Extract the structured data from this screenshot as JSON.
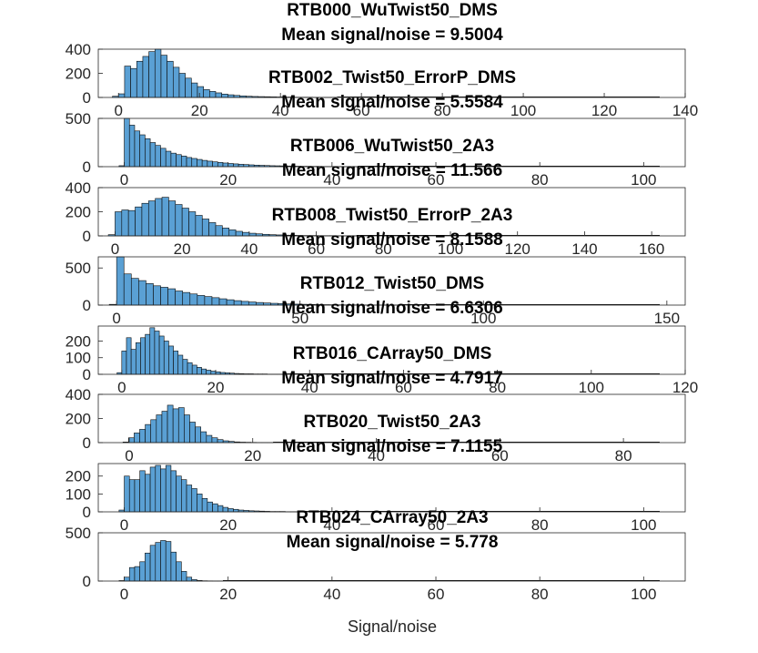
{
  "figure": {
    "xlabel": "Signal/noise"
  },
  "chart_data": [
    {
      "type": "bar",
      "title": "RTB000_WuTwist50_DMS",
      "subtitle": "Mean signal/noise = 9.5004",
      "xlim": [
        -5,
        140
      ],
      "xticks": [
        0,
        20,
        40,
        60,
        80,
        100,
        120,
        140
      ],
      "ylim": [
        0,
        400
      ],
      "yticks": [
        0,
        200,
        400
      ],
      "bin_start": -1.5,
      "bin_width": 1.5,
      "values": [
        10,
        30,
        260,
        240,
        300,
        340,
        380,
        400,
        350,
        300,
        250,
        200,
        160,
        120,
        90,
        65,
        50,
        38,
        28,
        22,
        17,
        13,
        10,
        8,
        7,
        6,
        5,
        4,
        3,
        3,
        2,
        2,
        2,
        1,
        1,
        1,
        1
      ]
    },
    {
      "type": "bar",
      "title": "RTB002_Twist50_ErrorP_DMS",
      "subtitle": "Mean signal/noise = 5.5584",
      "xlim": [
        -5,
        108
      ],
      "xticks": [
        0,
        20,
        40,
        60,
        80,
        100
      ],
      "ylim": [
        0,
        500
      ],
      "yticks": [
        0,
        500
      ],
      "bin_start": -1.0,
      "bin_width": 1.0,
      "values": [
        10,
        510,
        430,
        370,
        330,
        290,
        250,
        220,
        190,
        160,
        140,
        125,
        110,
        95,
        85,
        75,
        65,
        57,
        50,
        44,
        38,
        33,
        29,
        25,
        22,
        19,
        16,
        14,
        12,
        10,
        9,
        8,
        7,
        6,
        5,
        4,
        4,
        3,
        3,
        2,
        2,
        2,
        2,
        1,
        1,
        1
      ]
    },
    {
      "type": "bar",
      "title": "RTB006_WuTwist50_2A3",
      "subtitle": "Mean signal/noise = 11.566",
      "xlim": [
        -5,
        170
      ],
      "xticks": [
        0,
        20,
        40,
        60,
        80,
        100,
        120,
        140,
        160
      ],
      "ylim": [
        0,
        400
      ],
      "yticks": [
        0,
        200,
        400
      ],
      "bin_start": -2.0,
      "bin_width": 2.0,
      "values": [
        10,
        200,
        215,
        210,
        240,
        270,
        290,
        310,
        320,
        290,
        260,
        230,
        200,
        170,
        140,
        110,
        85,
        65,
        50,
        38,
        29,
        22,
        17,
        13,
        10,
        8,
        6,
        5,
        4,
        3,
        3,
        2,
        2,
        2,
        1,
        1,
        1
      ]
    },
    {
      "type": "bar",
      "title": "RTB008_Twist50_ErrorP_2A3",
      "subtitle": "Mean signal/noise = 8.1588",
      "xlim": [
        -5,
        155
      ],
      "xticks": [
        0,
        50,
        100,
        150
      ],
      "ylim": [
        0,
        650
      ],
      "yticks": [
        0,
        500
      ],
      "bin_start": -2.0,
      "bin_width": 2.0,
      "values": [
        10,
        650,
        420,
        360,
        330,
        290,
        260,
        240,
        220,
        190,
        170,
        150,
        130,
        115,
        100,
        85,
        72,
        60,
        50,
        42,
        35,
        29,
        24,
        20,
        16,
        13,
        11,
        9,
        7,
        6,
        5,
        4,
        3,
        3,
        2,
        2,
        2,
        1,
        1,
        1
      ]
    },
    {
      "type": "bar",
      "title": "RTB012_Twist50_DMS",
      "subtitle": "Mean signal/noise = 6.6306",
      "xlim": [
        -5,
        120
      ],
      "xticks": [
        0,
        20,
        40,
        60,
        80,
        100,
        120
      ],
      "ylim": [
        0,
        290
      ],
      "yticks": [
        0,
        100,
        200
      ],
      "bin_start": -1.0,
      "bin_width": 1.0,
      "values": [
        10,
        140,
        220,
        150,
        190,
        220,
        240,
        280,
        260,
        230,
        200,
        170,
        140,
        115,
        90,
        70,
        55,
        42,
        32,
        25,
        19,
        15,
        11,
        9,
        7,
        5,
        4,
        3,
        3,
        2,
        2,
        2,
        1,
        1,
        1,
        1
      ]
    },
    {
      "type": "bar",
      "title": "RTB016_CArray50_DMS",
      "subtitle": "Mean signal/noise = 4.7917",
      "xlim": [
        -5,
        90
      ],
      "xticks": [
        0,
        20,
        40,
        60,
        80
      ],
      "ylim": [
        0,
        400
      ],
      "yticks": [
        0,
        200,
        400
      ],
      "bin_start": -1.0,
      "bin_width": 0.9,
      "values": [
        5,
        40,
        80,
        110,
        150,
        190,
        230,
        260,
        310,
        280,
        290,
        230,
        170,
        130,
        90,
        60,
        40,
        25,
        15,
        10,
        6,
        4,
        3,
        2,
        1,
        1,
        1
      ]
    },
    {
      "type": "bar",
      "title": "RTB020_Twist50_2A3",
      "subtitle": "Mean signal/noise = 7.1155",
      "xlim": [
        -5,
        108
      ],
      "xticks": [
        0,
        20,
        40,
        60,
        80,
        100
      ],
      "ylim": [
        0,
        270
      ],
      "yticks": [
        0,
        100,
        200
      ],
      "bin_start": -1.0,
      "bin_width": 1.0,
      "values": [
        10,
        200,
        180,
        180,
        230,
        210,
        250,
        260,
        240,
        260,
        230,
        200,
        180,
        150,
        130,
        100,
        75,
        55,
        45,
        35,
        25,
        18,
        14,
        10,
        8,
        6,
        5,
        4,
        3,
        2,
        2,
        2,
        1,
        1,
        1
      ]
    },
    {
      "type": "bar",
      "title": "RTB024_CArray50_2A3",
      "subtitle": "Mean signal/noise = 5.778",
      "xlim": [
        -5,
        108
      ],
      "xticks": [
        0,
        20,
        40,
        60,
        80,
        100
      ],
      "ylim": [
        0,
        500
      ],
      "yticks": [
        0,
        500
      ],
      "bin_start": -1.0,
      "bin_width": 1.0,
      "values": [
        5,
        40,
        140,
        150,
        200,
        290,
        370,
        400,
        420,
        410,
        300,
        200,
        100,
        40,
        15,
        6,
        3,
        2,
        1,
        1
      ]
    }
  ]
}
